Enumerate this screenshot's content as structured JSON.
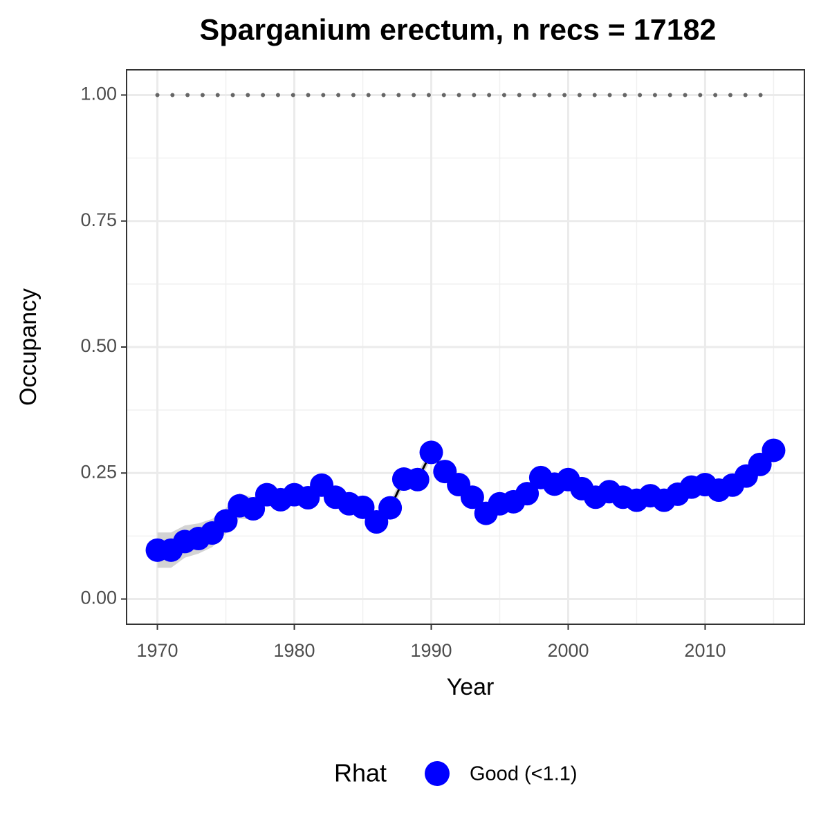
{
  "chart_data": {
    "type": "line",
    "title": "Sparganium erectum, n recs = 17182",
    "x_label": "Year",
    "y_label": "Occupancy",
    "x": [
      1970,
      1971,
      1972,
      1973,
      1974,
      1975,
      1976,
      1977,
      1978,
      1979,
      1980,
      1981,
      1982,
      1983,
      1984,
      1985,
      1986,
      1987,
      1988,
      1989,
      1990,
      1991,
      1992,
      1993,
      1994,
      1995,
      1996,
      1997,
      1998,
      1999,
      2000,
      2001,
      2002,
      2003,
      2004,
      2005,
      2006,
      2007,
      2008,
      2009,
      2010,
      2011,
      2012,
      2013,
      2014,
      2015
    ],
    "series": [
      {
        "name": "Good (<1.1)",
        "color": "#0000ff",
        "line_color": "#000000",
        "values": [
          0.097,
          0.097,
          0.114,
          0.12,
          0.131,
          0.155,
          0.185,
          0.179,
          0.207,
          0.197,
          0.207,
          0.201,
          0.226,
          0.202,
          0.189,
          0.182,
          0.153,
          0.181,
          0.238,
          0.237,
          0.291,
          0.253,
          0.227,
          0.202,
          0.17,
          0.189,
          0.193,
          0.209,
          0.241,
          0.228,
          0.237,
          0.219,
          0.202,
          0.213,
          0.202,
          0.196,
          0.205,
          0.196,
          0.208,
          0.222,
          0.227,
          0.216,
          0.226,
          0.244,
          0.267,
          0.295
        ]
      }
    ],
    "ribbon": {
      "color": "#d3d3d3",
      "upper": [
        0.132,
        0.132,
        0.146,
        0.15,
        0.159,
        0.18,
        0.21,
        0.201,
        0.227,
        0.217,
        0.227,
        0.221,
        0.244,
        0.217,
        0.204,
        0.197,
        0.165,
        0.193,
        0.25,
        0.249,
        0.303,
        0.263,
        0.237,
        0.212,
        0.18,
        0.199,
        0.203,
        0.219,
        0.251,
        0.238,
        0.247,
        0.229,
        0.212,
        0.223,
        0.212,
        0.206,
        0.215,
        0.206,
        0.218,
        0.232,
        0.237,
        0.226,
        0.236,
        0.254,
        0.277,
        0.305
      ],
      "lower": [
        0.062,
        0.062,
        0.082,
        0.09,
        0.103,
        0.13,
        0.16,
        0.157,
        0.187,
        0.177,
        0.187,
        0.181,
        0.208,
        0.187,
        0.174,
        0.167,
        0.141,
        0.169,
        0.226,
        0.225,
        0.279,
        0.243,
        0.217,
        0.192,
        0.16,
        0.179,
        0.183,
        0.199,
        0.231,
        0.218,
        0.227,
        0.209,
        0.192,
        0.203,
        0.192,
        0.186,
        0.195,
        0.186,
        0.198,
        0.212,
        0.217,
        0.206,
        0.216,
        0.234,
        0.257,
        0.285
      ]
    },
    "reference_line": {
      "y": 1,
      "x": [
        1970,
        2015
      ],
      "color": "#666666",
      "style": "dotted"
    },
    "xlim": [
      1967.75,
      2017.25
    ],
    "ylim": [
      -0.05,
      1.05
    ],
    "xticks": [
      1970,
      1980,
      1990,
      2000,
      2010
    ],
    "yticks": [
      {
        "value": 0,
        "label": "0.00"
      },
      {
        "value": 0.25,
        "label": "0.25"
      },
      {
        "value": 0.5,
        "label": "0.50"
      },
      {
        "value": 0.75,
        "label": "0.75"
      },
      {
        "value": 1,
        "label": "1.00"
      }
    ],
    "minor_xticks": [
      1975,
      1985,
      1995,
      2005,
      2015
    ],
    "minor_yticks": [
      0.125,
      0.375,
      0.625,
      0.875
    ],
    "grid": true,
    "legend_title": "Rhat",
    "legend_position": "bottom"
  }
}
